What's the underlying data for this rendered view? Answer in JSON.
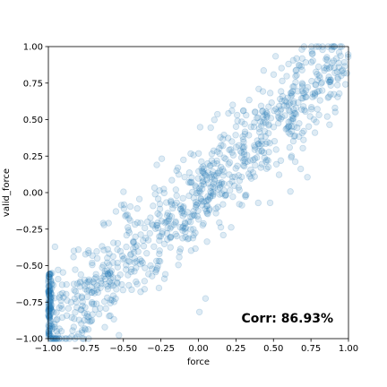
{
  "chart_data": {
    "type": "scatter",
    "title": "",
    "xlabel": "force",
    "ylabel": "valid_force",
    "xlim": [
      -1.0,
      1.0
    ],
    "ylim": [
      -1.0,
      1.0
    ],
    "xticks": [
      -1.0,
      -0.75,
      -0.5,
      -0.25,
      0.0,
      0.25,
      0.5,
      0.75,
      1.0
    ],
    "yticks": [
      -1.0,
      -0.75,
      -0.5,
      -0.25,
      0.0,
      0.25,
      0.5,
      0.75,
      1.0
    ],
    "xtick_labels": [
      "−1.00",
      "−0.75",
      "−0.50",
      "−0.25",
      "0.00",
      "0.25",
      "0.50",
      "0.75",
      "1.00"
    ],
    "ytick_labels": [
      "−1.00",
      "−0.75",
      "−0.50",
      "−0.25",
      "0.00",
      "0.25",
      "0.50",
      "0.75",
      "1.00"
    ],
    "grid": false,
    "legend": null,
    "marker_color": "#1f77b4",
    "marker_alpha": 0.15,
    "annotation": "Corr: 86.93%",
    "correlation": 0.8693,
    "point_generation": {
      "n_points": 1000,
      "seed": 7,
      "slope": 0.95,
      "noise_sd": 0.17,
      "edge_cluster_x": -1.0,
      "edge_cluster_count": 110,
      "edge_cluster_y_range": [
        -1.0,
        -0.55
      ]
    }
  }
}
